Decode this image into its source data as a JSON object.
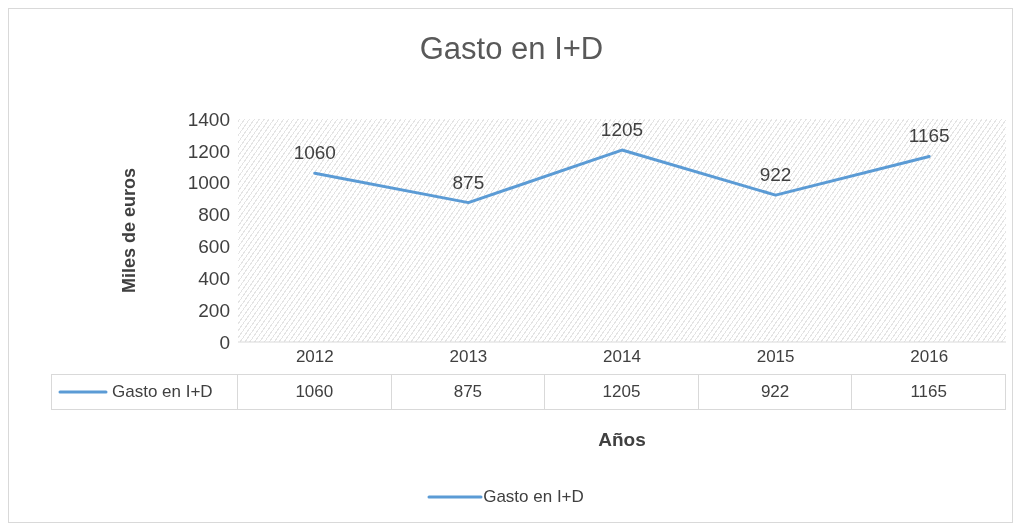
{
  "chart_data": {
    "type": "line",
    "title": "Gasto en I+D",
    "xlabel": "Años",
    "ylabel": "Miles de euros",
    "categories": [
      "2012",
      "2013",
      "2014",
      "2015",
      "2016"
    ],
    "series": [
      {
        "name": "Gasto en I+D",
        "color": "#5b9bd5",
        "values": [
          1060,
          875,
          1205,
          922,
          1165
        ],
        "value_labels": [
          "1060",
          "875",
          "1205",
          "922",
          "1165"
        ]
      }
    ],
    "ylim": [
      0,
      1400
    ],
    "yticks": [
      0,
      200,
      400,
      600,
      800,
      1000,
      1200,
      1400
    ],
    "data_labels": true,
    "legend": "bottom",
    "marker": "none"
  }
}
